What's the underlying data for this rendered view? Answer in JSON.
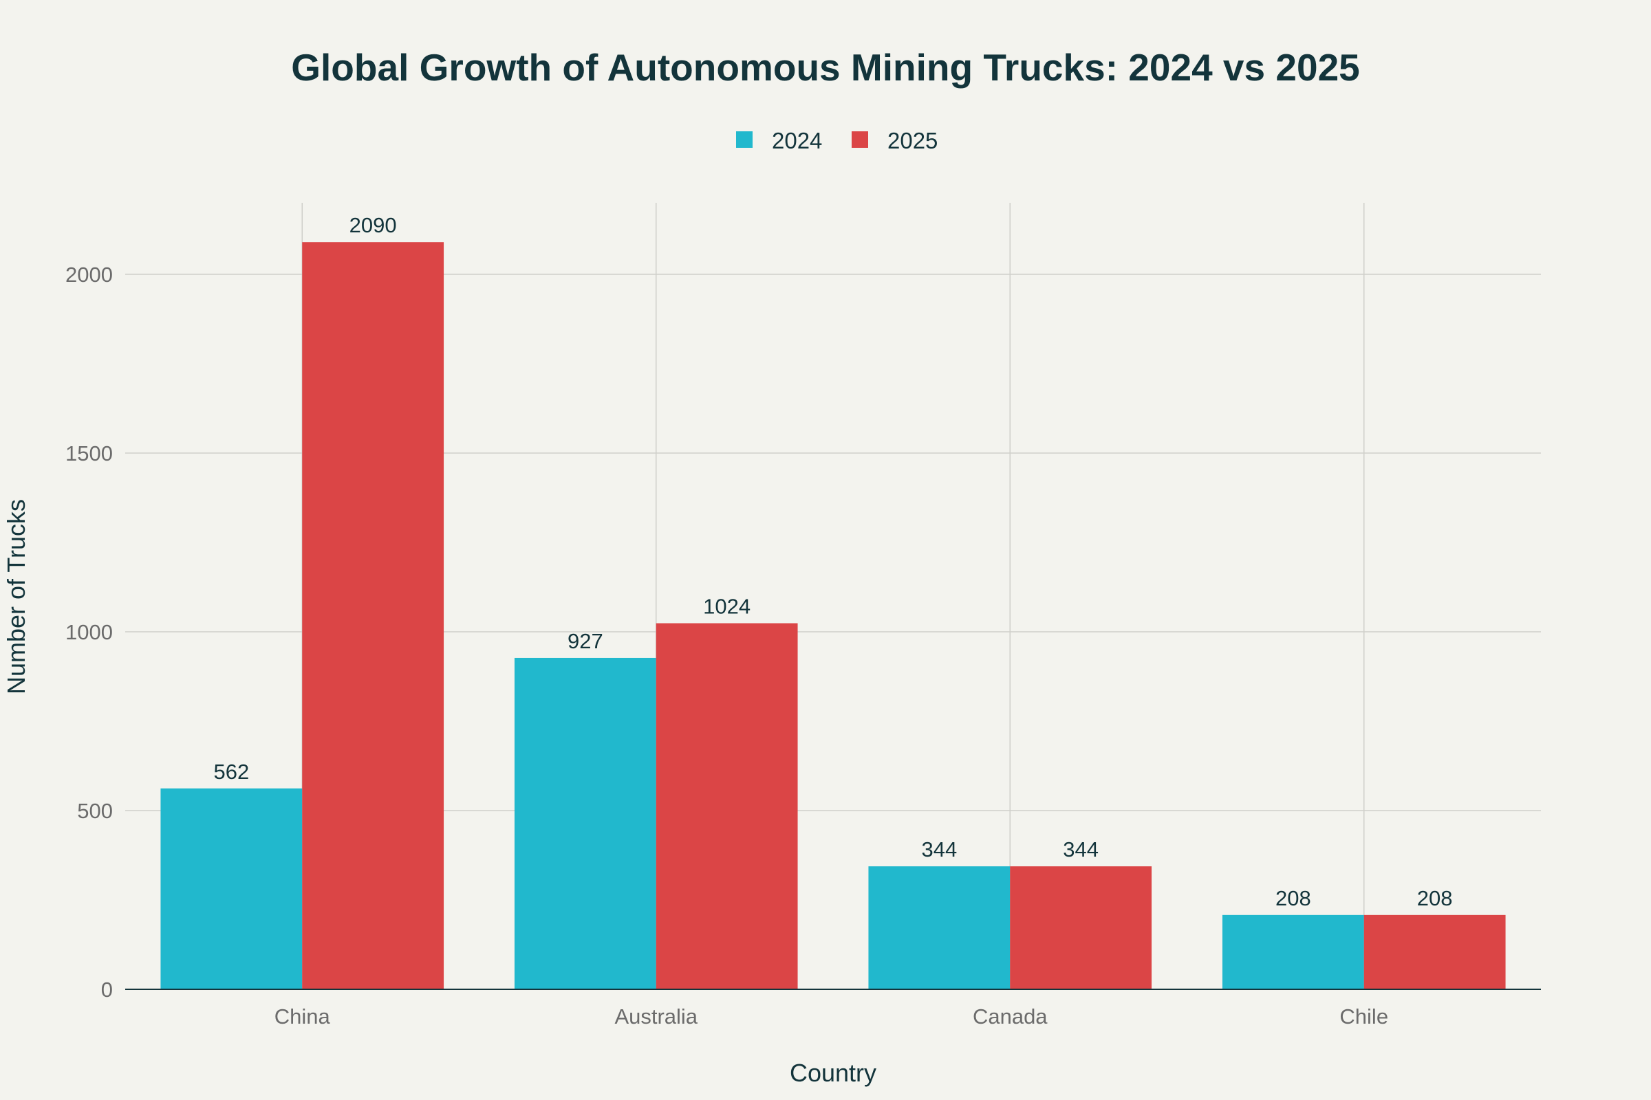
{
  "chart_data": {
    "type": "bar",
    "title": "Global Growth of Autonomous Mining Trucks: 2024 vs 2025",
    "xlabel": "Country",
    "ylabel": "Number of Trucks",
    "categories": [
      "China",
      "Australia",
      "Canada",
      "Chile"
    ],
    "series": [
      {
        "name": "2024",
        "values": [
          562,
          927,
          344,
          208
        ],
        "color": "#21b8cd"
      },
      {
        "name": "2025",
        "values": [
          2090,
          1024,
          344,
          208
        ],
        "color": "#db4546"
      }
    ],
    "ylim": [
      0,
      2200
    ],
    "yticks": [
      0,
      500,
      1000,
      1500,
      2000
    ],
    "grid": true,
    "legend": "top-center",
    "data_labels": true
  }
}
